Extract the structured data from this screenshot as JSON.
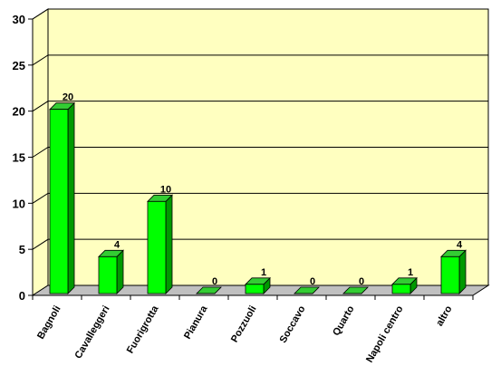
{
  "chart_data": {
    "type": "bar",
    "title": "",
    "xlabel": "",
    "ylabel": "",
    "categories": [
      "Bagnoli",
      "Cavalleggeri",
      "Fuorigrotta",
      "Pianura",
      "Pozzuoli",
      "Soccavo",
      "Quarto",
      "Napoli centro",
      "altro"
    ],
    "values": [
      20,
      4,
      10,
      0,
      1,
      0,
      0,
      1,
      4
    ],
    "data_labels": [
      "20",
      "4",
      "10",
      "0",
      "1",
      "0",
      "0",
      "1",
      "4"
    ],
    "yticks": [
      "0",
      "5",
      "10",
      "15",
      "20",
      "25",
      "30"
    ],
    "ylim": [
      0,
      30
    ],
    "grid": true,
    "style": "3d",
    "colors": {
      "wall": "#ffffc0",
      "floor": "#c0c0c0",
      "bar_front": "#00ff00",
      "bar_top": "#33cc33",
      "bar_side": "#009900",
      "grid": "#000000"
    }
  }
}
